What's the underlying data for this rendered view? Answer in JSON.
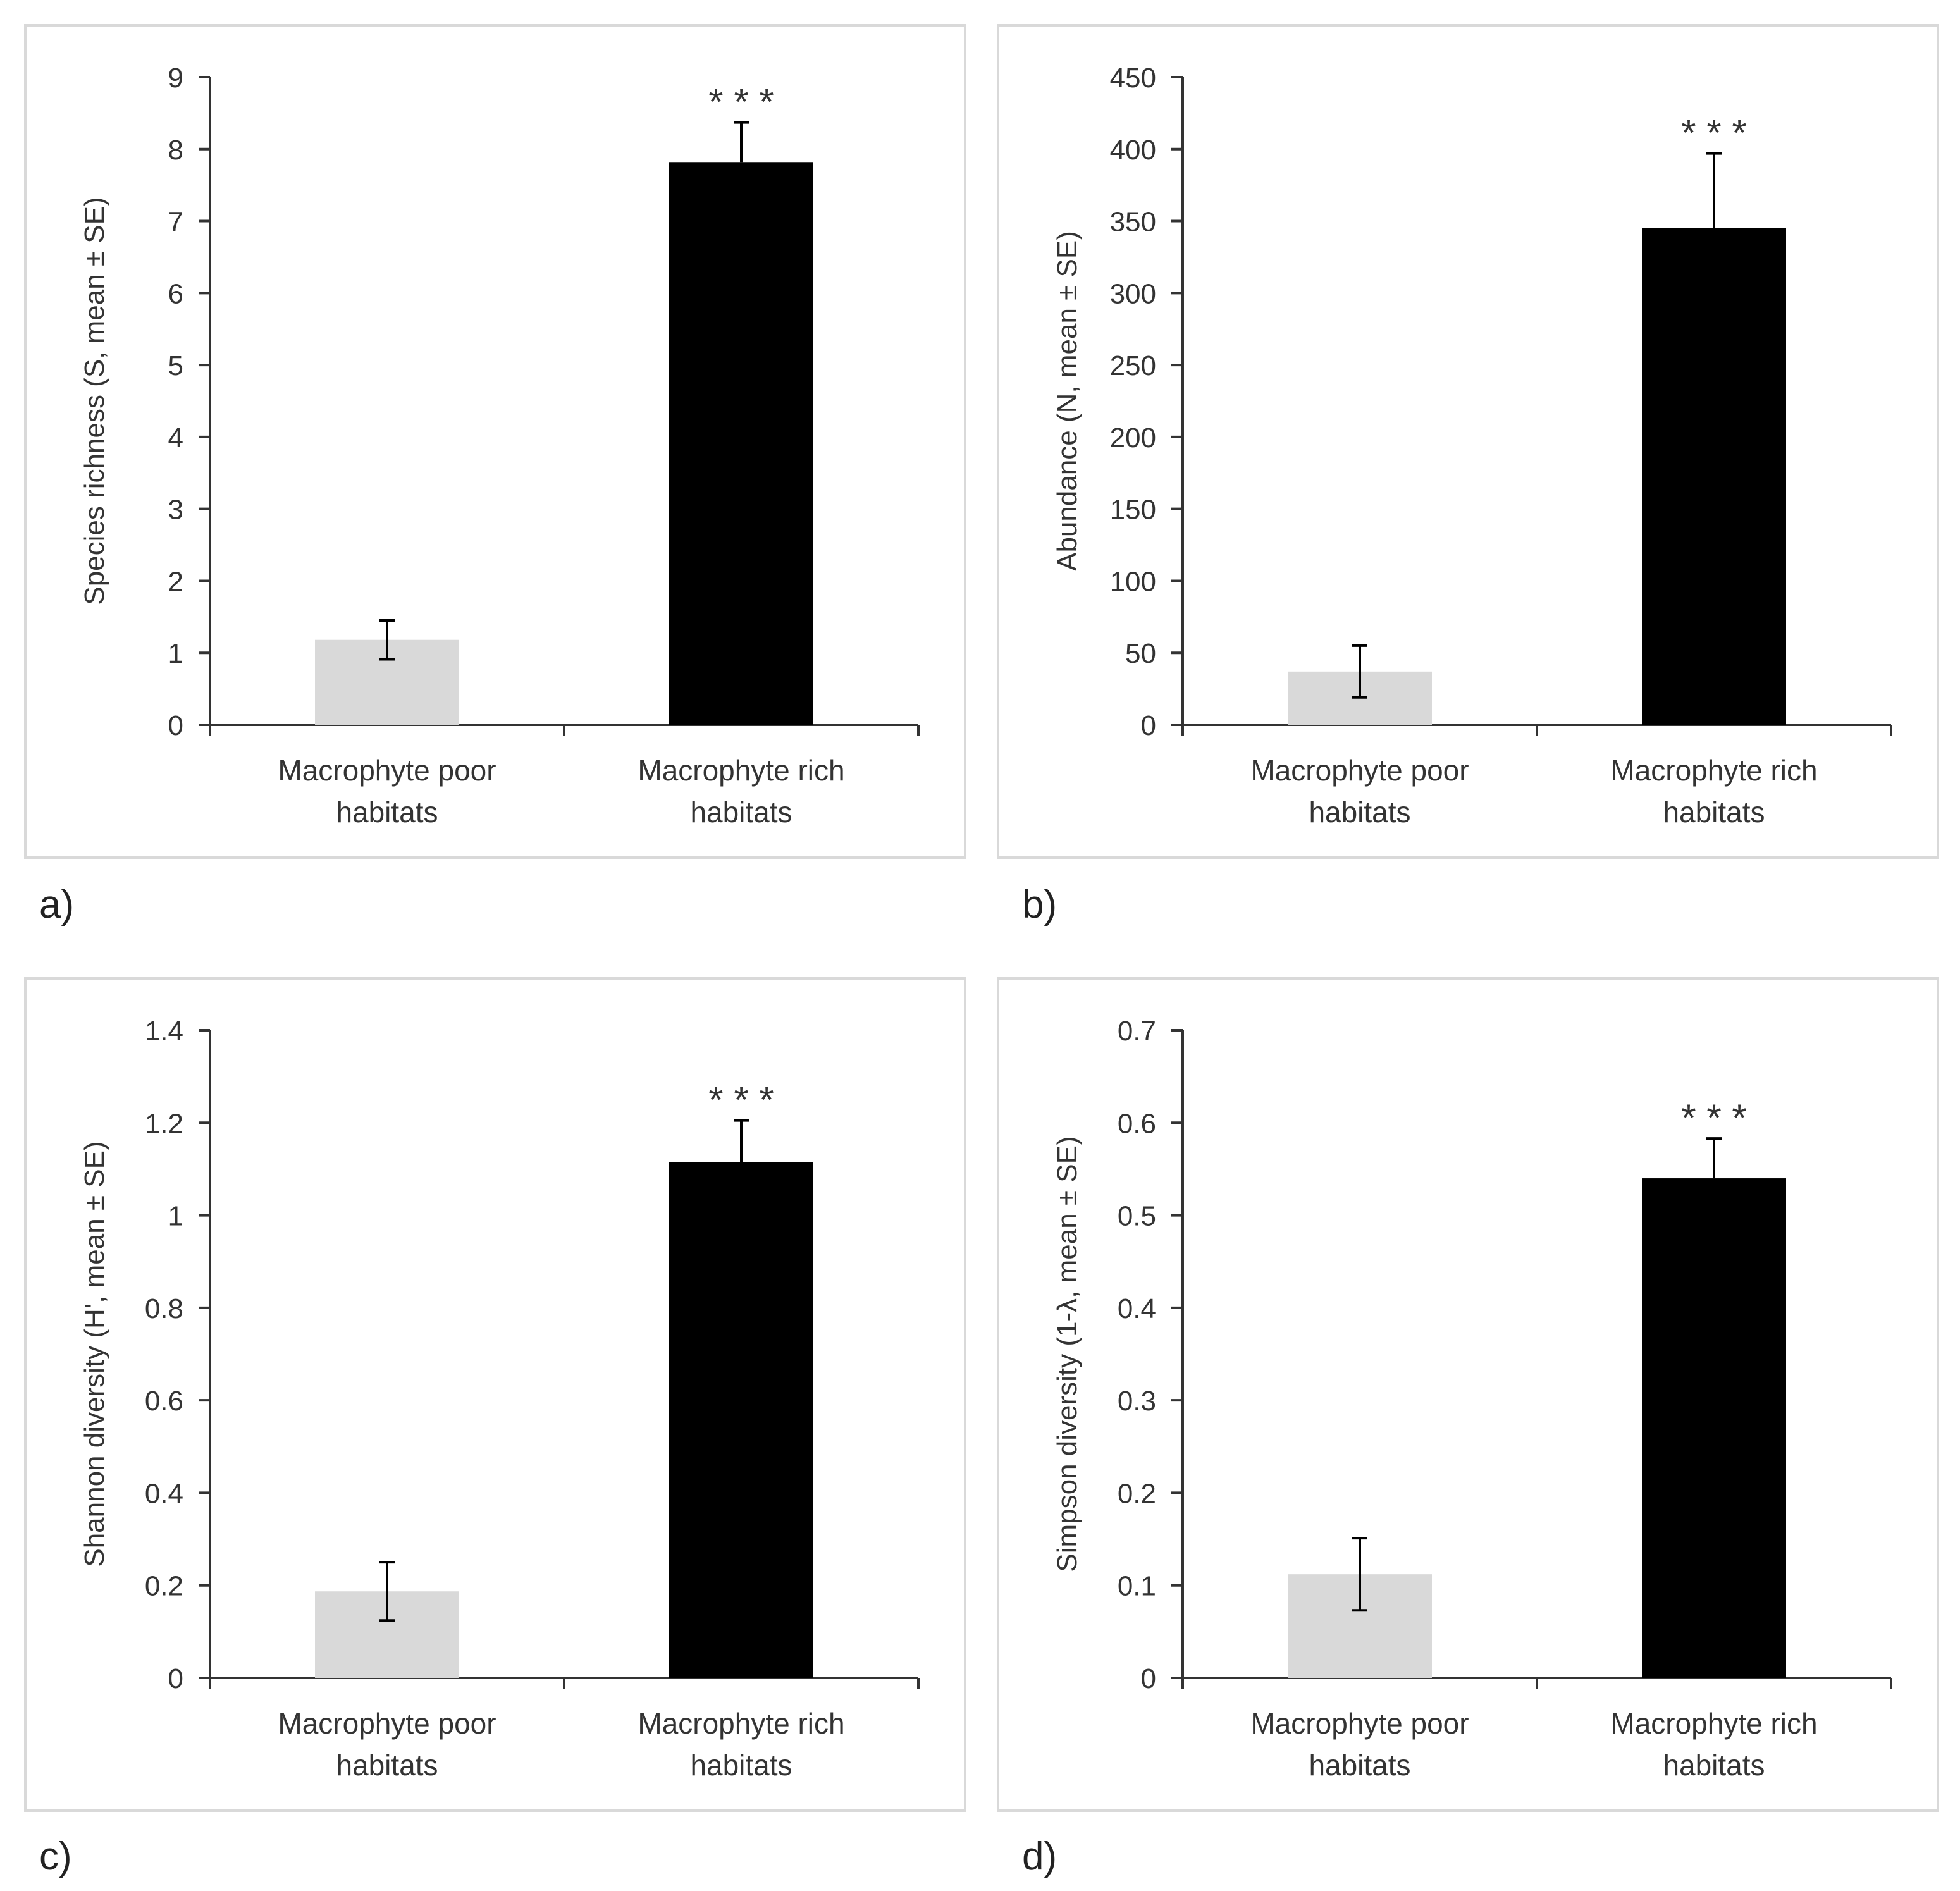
{
  "colors": {
    "poor": "#d9d9d9",
    "rich": "#000000",
    "axis": "#333333"
  },
  "chart_data": [
    {
      "type": "bar",
      "panel": "a)",
      "categories": [
        [
          "Macrophyte poor",
          "habitats"
        ],
        [
          "Macrophyte rich",
          "habitats"
        ]
      ],
      "values": [
        1.18,
        7.82
      ],
      "errors": [
        0.27,
        0.55
      ],
      "significance": "* * *",
      "ylabel": "Species richness (S, mean ± SE)",
      "ylim": [
        0,
        9
      ],
      "yticks": [
        0,
        1,
        2,
        3,
        4,
        5,
        6,
        7,
        8,
        9
      ],
      "ytick_labels": [
        "0",
        "1",
        "2",
        "3",
        "4",
        "5",
        "6",
        "7",
        "8",
        "9"
      ]
    },
    {
      "type": "bar",
      "panel": "b)",
      "categories": [
        [
          "Macrophyte poor",
          "habitats"
        ],
        [
          "Macrophyte rich",
          "habitats"
        ]
      ],
      "values": [
        37,
        345
      ],
      "errors": [
        18,
        52
      ],
      "significance": "* * *",
      "ylabel": "Abundance (N, mean ± SE)",
      "ylim": [
        0,
        450
      ],
      "yticks": [
        0,
        50,
        100,
        150,
        200,
        250,
        300,
        350,
        400,
        450
      ],
      "ytick_labels": [
        "0",
        "50",
        "100",
        "150",
        "200",
        "250",
        "300",
        "350",
        "400",
        "450"
      ]
    },
    {
      "type": "bar",
      "panel": "c)",
      "categories": [
        [
          "Macrophyte poor",
          "habitats"
        ],
        [
          "Macrophyte rich",
          "habitats"
        ]
      ],
      "values": [
        0.187,
        1.115
      ],
      "errors": [
        0.063,
        0.09
      ],
      "significance": "* * *",
      "ylabel": "Shannon diversity (H', mean ± SE)",
      "ylim": [
        0,
        1.4
      ],
      "yticks": [
        0,
        0.2,
        0.4,
        0.6,
        0.8,
        1,
        1.2,
        1.4
      ],
      "ytick_labels": [
        "0",
        "0.2",
        "0.4",
        "0.6",
        "0.8",
        "1",
        "1.2",
        "1.4"
      ]
    },
    {
      "type": "bar",
      "panel": "d)",
      "categories": [
        [
          "Macrophyte poor",
          "habitats"
        ],
        [
          "Macrophyte rich",
          "habitats"
        ]
      ],
      "values": [
        0.112,
        0.54
      ],
      "errors": [
        0.039,
        0.043
      ],
      "significance": "* * *",
      "ylabel": "Simpson diversity (1-λ, mean ± SE)",
      "ylim": [
        0,
        0.7
      ],
      "yticks": [
        0,
        0.1,
        0.2,
        0.3,
        0.4,
        0.5,
        0.6,
        0.7
      ],
      "ytick_labels": [
        "0",
        "0.1",
        "0.2",
        "0.3",
        "0.4",
        "0.5",
        "0.6",
        "0.7"
      ]
    }
  ]
}
